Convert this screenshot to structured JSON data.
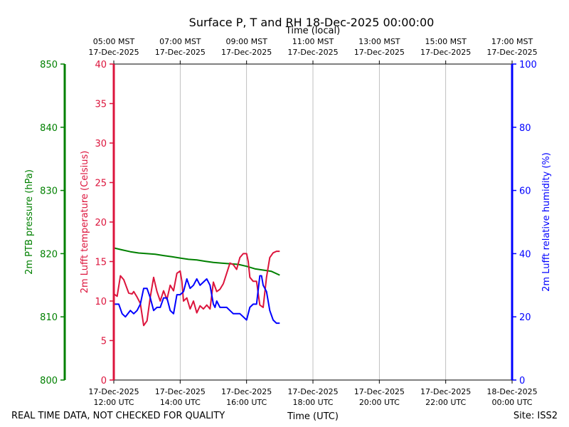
{
  "chart_data": {
    "type": "line",
    "title": "Surface P, T and RH 18-Dec-2025 00:00:00",
    "xlabel_bottom": "Time (UTC)",
    "xlabel_top": "Time (local)",
    "footer_left": "REAL TIME DATA, NOT CHECKED FOR QUALITY",
    "footer_right": "Site: ISS2",
    "x_range_hours": [
      0,
      12
    ],
    "bottom_ticks": [
      {
        "h": 0,
        "line1": "17-Dec-2025",
        "line2": "12:00 UTC"
      },
      {
        "h": 2,
        "line1": "17-Dec-2025",
        "line2": "14:00 UTC"
      },
      {
        "h": 4,
        "line1": "17-Dec-2025",
        "line2": "16:00 UTC"
      },
      {
        "h": 6,
        "line1": "17-Dec-2025",
        "line2": "18:00 UTC"
      },
      {
        "h": 8,
        "line1": "17-Dec-2025",
        "line2": "20:00 UTC"
      },
      {
        "h": 10,
        "line1": "17-Dec-2025",
        "line2": "22:00 UTC"
      },
      {
        "h": 12,
        "line1": "18-Dec-2025",
        "line2": "00:00 UTC"
      }
    ],
    "top_ticks": [
      {
        "h": 0,
        "line1": "05:00 MST",
        "line2": "17-Dec-2025"
      },
      {
        "h": 2,
        "line1": "07:00 MST",
        "line2": "17-Dec-2025"
      },
      {
        "h": 4,
        "line1": "09:00 MST",
        "line2": "17-Dec-2025"
      },
      {
        "h": 6,
        "line1": "11:00 MST",
        "line2": "17-Dec-2025"
      },
      {
        "h": 8,
        "line1": "13:00 MST",
        "line2": "17-Dec-2025"
      },
      {
        "h": 10,
        "line1": "15:00 MST",
        "line2": "17-Dec-2025"
      },
      {
        "h": 12,
        "line1": "17:00 MST",
        "line2": "17-Dec-2025"
      }
    ],
    "axes": {
      "pressure": {
        "label": "2m PTB pressure (hPa)",
        "color": "#008000",
        "range": [
          800,
          850
        ],
        "ticks": [
          800,
          810,
          820,
          830,
          840,
          850
        ]
      },
      "temperature": {
        "label": "2m Lufft temperature (Celsius)",
        "color": "#dc143c",
        "range": [
          0,
          40
        ],
        "ticks": [
          0,
          5,
          10,
          15,
          20,
          25,
          30,
          35,
          40
        ]
      },
      "humidity": {
        "label": "2m Lufft relative humidity (%)",
        "color": "#0000ff",
        "range": [
          0,
          100
        ],
        "ticks": [
          0,
          20,
          40,
          60,
          80,
          100
        ]
      }
    },
    "series": [
      {
        "name": "2m PTB pressure",
        "axis": "pressure",
        "color": "#008000",
        "x_hours": [
          0.0,
          0.25,
          0.5,
          0.75,
          1.0,
          1.25,
          1.5,
          1.75,
          2.0,
          2.25,
          2.5,
          2.75,
          3.0,
          3.25,
          3.5,
          3.75,
          4.0,
          4.25,
          4.5,
          4.75,
          5.0
        ],
        "values": [
          820.9,
          820.6,
          820.3,
          820.1,
          820.0,
          819.9,
          819.7,
          819.5,
          819.3,
          819.1,
          819.0,
          818.8,
          818.6,
          818.5,
          818.4,
          818.3,
          818.0,
          817.6,
          817.4,
          817.2,
          816.6
        ]
      },
      {
        "name": "2m Lufft temperature",
        "axis": "temperature",
        "color": "#dc143c",
        "x_hours": [
          0.0,
          0.1,
          0.2,
          0.3,
          0.45,
          0.55,
          0.6,
          0.7,
          0.8,
          0.9,
          1.0,
          1.1,
          1.2,
          1.3,
          1.4,
          1.5,
          1.6,
          1.7,
          1.8,
          1.9,
          2.0,
          2.05,
          2.1,
          2.2,
          2.3,
          2.4,
          2.5,
          2.6,
          2.7,
          2.8,
          2.9,
          3.0,
          3.05,
          3.1,
          3.2,
          3.3,
          3.4,
          3.5,
          3.6,
          3.7,
          3.8,
          3.9,
          4.0,
          4.05,
          4.1,
          4.2,
          4.3,
          4.4,
          4.5,
          4.6,
          4.7,
          4.8,
          4.9,
          5.0
        ],
        "values": [
          10.9,
          10.6,
          13.2,
          12.7,
          11.0,
          10.9,
          11.2,
          10.5,
          9.7,
          6.9,
          7.5,
          10.5,
          13.0,
          11.2,
          10.0,
          11.3,
          10.2,
          12.0,
          11.3,
          13.5,
          13.8,
          12.5,
          10.0,
          10.4,
          9.0,
          10.0,
          8.5,
          9.4,
          9.0,
          9.5,
          9.0,
          12.4,
          11.8,
          11.2,
          11.5,
          12.2,
          13.5,
          14.8,
          14.6,
          14.0,
          15.5,
          16.0,
          16.0,
          15.0,
          13.0,
          12.5,
          12.5,
          9.5,
          9.2,
          13.0,
          15.5,
          16.1,
          16.3,
          16.3
        ]
      },
      {
        "name": "2m Lufft relative humidity",
        "axis": "humidity",
        "color": "#0000ff",
        "x_hours": [
          0.0,
          0.15,
          0.25,
          0.35,
          0.5,
          0.6,
          0.7,
          0.8,
          0.9,
          1.0,
          1.1,
          1.2,
          1.3,
          1.4,
          1.5,
          1.6,
          1.7,
          1.8,
          1.9,
          2.0,
          2.1,
          2.2,
          2.3,
          2.4,
          2.5,
          2.6,
          2.7,
          2.8,
          2.9,
          3.0,
          3.05,
          3.1,
          3.2,
          3.3,
          3.4,
          3.5,
          3.6,
          3.7,
          3.8,
          3.9,
          4.0,
          4.05,
          4.1,
          4.2,
          4.3,
          4.4,
          4.45,
          4.5,
          4.6,
          4.7,
          4.8,
          4.9,
          5.0
        ],
        "values": [
          24,
          24,
          21,
          20,
          22,
          21,
          22,
          24,
          29,
          29,
          26,
          22,
          23,
          23,
          26,
          26,
          22,
          21,
          27,
          27,
          28,
          32,
          29,
          30,
          32,
          30,
          31,
          32,
          30,
          24,
          23,
          25,
          23,
          23,
          23,
          22,
          21,
          21,
          21,
          20,
          19,
          21,
          23,
          24,
          24,
          33,
          33,
          30,
          28,
          22,
          19,
          18,
          18
        ]
      }
    ]
  }
}
